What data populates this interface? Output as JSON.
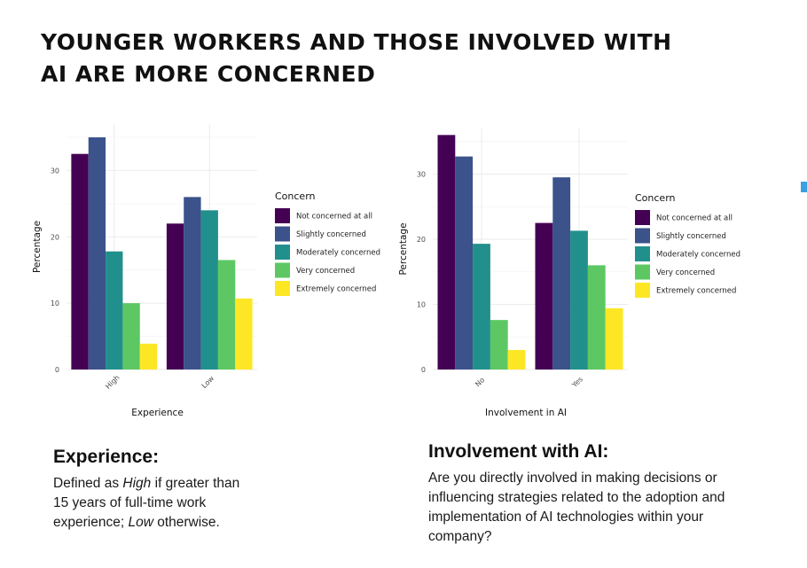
{
  "title_lines": [
    "YOUNGER WORKERS AND THOSE INVOLVED WITH",
    "AI ARE MORE CONCERNED"
  ],
  "colors": {
    "Not concerned at all": "#440154",
    "Slightly concerned": "#3b528b",
    "Moderately concerned": "#21908c",
    "Very concerned": "#5dc863",
    "Extremely concerned": "#fde725"
  },
  "chart_data": [
    {
      "type": "bar",
      "xlabel": "Experience",
      "ylabel": "Percentage",
      "categories": [
        "High",
        "Low"
      ],
      "ylim": [
        0,
        37
      ],
      "yticks": [
        0,
        10,
        20,
        30
      ],
      "grid": true,
      "legend": {
        "title": "Concern",
        "position": "right"
      },
      "series": [
        {
          "name": "Not concerned at all",
          "values": [
            32.5,
            22
          ]
        },
        {
          "name": "Slightly concerned",
          "values": [
            35,
            26
          ]
        },
        {
          "name": "Moderately concerned",
          "values": [
            17.8,
            24
          ]
        },
        {
          "name": "Very concerned",
          "values": [
            10,
            16.5
          ]
        },
        {
          "name": "Extremely concerned",
          "values": [
            3.9,
            10.7
          ]
        }
      ]
    },
    {
      "type": "bar",
      "xlabel": "Involvement in AI",
      "ylabel": "Percentage",
      "categories": [
        "No",
        "Yes"
      ],
      "ylim": [
        0,
        37
      ],
      "yticks": [
        0,
        10,
        20,
        30
      ],
      "grid": true,
      "legend": {
        "title": "Concern",
        "position": "right"
      },
      "series": [
        {
          "name": "Not concerned at all",
          "values": [
            36,
            22.5
          ]
        },
        {
          "name": "Slightly concerned",
          "values": [
            32.7,
            29.5
          ]
        },
        {
          "name": "Moderately concerned",
          "values": [
            19.3,
            21.3
          ]
        },
        {
          "name": "Very concerned",
          "values": [
            7.6,
            16
          ]
        },
        {
          "name": "Extremely concerned",
          "values": [
            3,
            9.4
          ]
        }
      ]
    }
  ],
  "notes": {
    "experience": {
      "heading": "Experience:",
      "parts": [
        "Defined as ",
        "High",
        " if greater than 15 years of full-time work experience; ",
        "Low",
        " otherwise."
      ]
    },
    "involvement": {
      "heading": "Involvement with AI:",
      "text": "Are you directly involved in making decisions or influencing strategies related to the adoption and implementation of AI technologies within your company?"
    }
  }
}
